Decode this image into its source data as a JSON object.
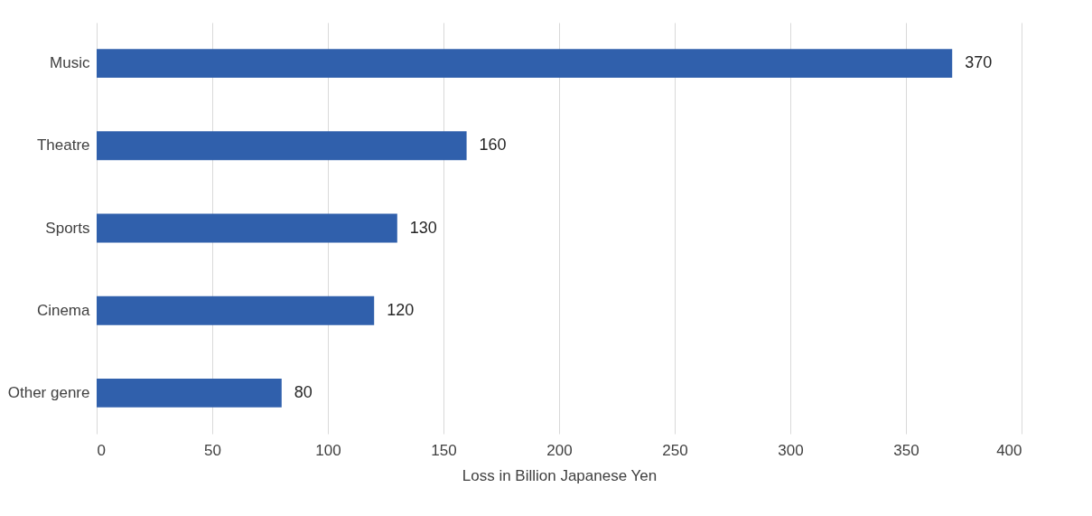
{
  "chart_data": {
    "type": "bar",
    "orientation": "horizontal",
    "categories": [
      "Music",
      "Theatre",
      "Sports",
      "Cinema",
      "Other genre"
    ],
    "values": [
      370,
      160,
      130,
      120,
      80
    ],
    "color": "#3060ac",
    "xlim": [
      0,
      400
    ],
    "xticks": [
      0,
      50,
      100,
      150,
      200,
      250,
      300,
      350,
      400
    ],
    "xlabel": "Loss in Billion Japanese Yen",
    "grid": "x",
    "data_labels": true
  }
}
